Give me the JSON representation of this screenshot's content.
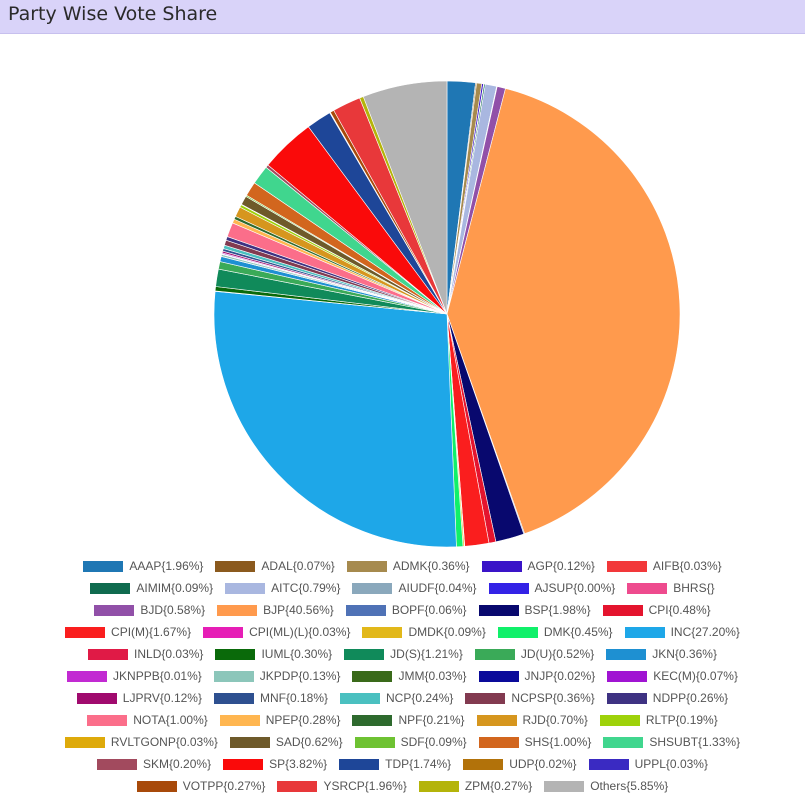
{
  "header": {
    "title": "Party Wise Vote Share"
  },
  "chart_data": {
    "type": "pie",
    "start_angle_deg": 0,
    "legend_position": "bottom",
    "slices": [
      {
        "label": "AAAP{1.96%}",
        "value": 1.96,
        "color": "#1f77b4"
      },
      {
        "label": "ADAL{0.07%}",
        "value": 0.07,
        "color": "#8b5a1e"
      },
      {
        "label": "ADMK{0.36%}",
        "value": 0.36,
        "color": "#a68a4e"
      },
      {
        "label": "AGP{0.12%}",
        "value": 0.12,
        "color": "#3a14c8"
      },
      {
        "label": "AIFB{0.03%}",
        "value": 0.03,
        "color": "#f2383a"
      },
      {
        "label": "AIMIM{0.09%}",
        "value": 0.09,
        "color": "#0f6b4f"
      },
      {
        "label": "AITC{0.79%}",
        "value": 0.79,
        "color": "#a9b7e0"
      },
      {
        "label": "AIUDF{0.04%}",
        "value": 0.04,
        "color": "#8aa8bc"
      },
      {
        "label": "AJSUP{0.00%}",
        "value": 0.0,
        "color": "#3322e6"
      },
      {
        "label": "BHRS{}",
        "value": 0.0,
        "color": "#ee4b8e"
      },
      {
        "label": "BJD{0.58%}",
        "value": 0.58,
        "color": "#9150a8"
      },
      {
        "label": "BJP{40.56%}",
        "value": 40.56,
        "color": "#ff9a4d"
      },
      {
        "label": "BOPF{0.06%}",
        "value": 0.06,
        "color": "#4f72b6"
      },
      {
        "label": "BSP{1.98%}",
        "value": 1.98,
        "color": "#08086e"
      },
      {
        "label": "CPI{0.48%}",
        "value": 0.48,
        "color": "#e4142e"
      },
      {
        "label": "CPI(M){1.67%}",
        "value": 1.67,
        "color": "#fa1e1e"
      },
      {
        "label": "CPI(ML)(L){0.03%}",
        "value": 0.03,
        "color": "#e61eb6"
      },
      {
        "label": "DMDK{0.09%}",
        "value": 0.09,
        "color": "#e2b81a"
      },
      {
        "label": "DMK{0.45%}",
        "value": 0.45,
        "color": "#10f06a"
      },
      {
        "label": "INC{27.20%}",
        "value": 27.2,
        "color": "#1ea7e8"
      },
      {
        "label": "INLD{0.03%}",
        "value": 0.03,
        "color": "#e01a46"
      },
      {
        "label": "IUML{0.30%}",
        "value": 0.3,
        "color": "#0a6a0a"
      },
      {
        "label": "JD(S){1.21%}",
        "value": 1.21,
        "color": "#108a5a"
      },
      {
        "label": "JD(U){0.52%}",
        "value": 0.52,
        "color": "#3aaa58"
      },
      {
        "label": "JKN{0.36%}",
        "value": 0.36,
        "color": "#1e90d2"
      },
      {
        "label": "JKNPPB{0.01%}",
        "value": 0.01,
        "color": "#c22ad2"
      },
      {
        "label": "JKPDP{0.13%}",
        "value": 0.13,
        "color": "#8cc6ba"
      },
      {
        "label": "JMM{0.03%}",
        "value": 0.03,
        "color": "#3a6a1a"
      },
      {
        "label": "JNJP{0.02%}",
        "value": 0.02,
        "color": "#0a0a9a"
      },
      {
        "label": "KEC(M){0.07%}",
        "value": 0.07,
        "color": "#a014d2"
      },
      {
        "label": "LJPRV{0.12%}",
        "value": 0.12,
        "color": "#a00a6e"
      },
      {
        "label": "MNF{0.18%}",
        "value": 0.18,
        "color": "#2e5090"
      },
      {
        "label": "NCP{0.24%}",
        "value": 0.24,
        "color": "#4ac0c0"
      },
      {
        "label": "NCPSP{0.36%}",
        "value": 0.36,
        "color": "#823a50"
      },
      {
        "label": "NDPP{0.26%}",
        "value": 0.26,
        "color": "#3e3282"
      },
      {
        "label": "NOTA{1.00%}",
        "value": 1.0,
        "color": "#fb6e8a"
      },
      {
        "label": "NPEP{0.28%}",
        "value": 0.28,
        "color": "#ffb650"
      },
      {
        "label": "NPF{0.21%}",
        "value": 0.21,
        "color": "#2e6a2e"
      },
      {
        "label": "RJD{0.70%}",
        "value": 0.7,
        "color": "#d6961e"
      },
      {
        "label": "RLTP{0.19%}",
        "value": 0.19,
        "color": "#9ed20a"
      },
      {
        "label": "RVLTGONP{0.03%}",
        "value": 0.03,
        "color": "#deaa0a"
      },
      {
        "label": "SAD{0.62%}",
        "value": 0.62,
        "color": "#6e5a2a"
      },
      {
        "label": "SDF{0.09%}",
        "value": 0.09,
        "color": "#6ec232"
      },
      {
        "label": "SHS{1.00%}",
        "value": 1.0,
        "color": "#d2661e"
      },
      {
        "label": "SHSUBT{1.33%}",
        "value": 1.33,
        "color": "#40d68e"
      },
      {
        "label": "SKM{0.20%}",
        "value": 0.2,
        "color": "#a24a5e"
      },
      {
        "label": "SP{3.82%}",
        "value": 3.82,
        "color": "#fa0a0a"
      },
      {
        "label": "TDP{1.74%}",
        "value": 1.74,
        "color": "#1e4698"
      },
      {
        "label": "UDP{0.02%}",
        "value": 0.02,
        "color": "#b2720a"
      },
      {
        "label": "UPPL{0.03%}",
        "value": 0.03,
        "color": "#3a2ac2"
      },
      {
        "label": "VOTPP{0.27%}",
        "value": 0.27,
        "color": "#a84a0a"
      },
      {
        "label": "YSRCP{1.96%}",
        "value": 1.96,
        "color": "#e8383a"
      },
      {
        "label": "ZPM{0.27%}",
        "value": 0.27,
        "color": "#b4b40a"
      },
      {
        "label": "Others{5.85%}",
        "value": 5.85,
        "color": "#b4b4b4"
      }
    ]
  }
}
